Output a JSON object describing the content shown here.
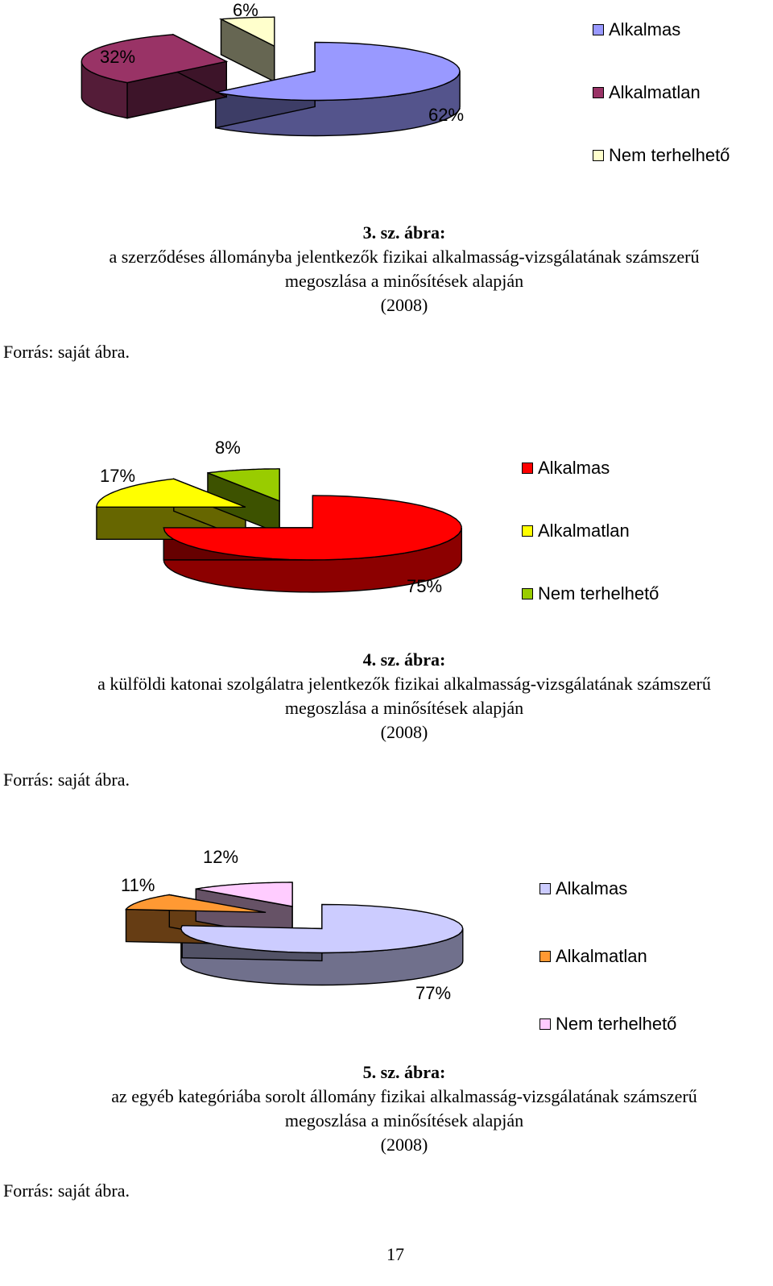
{
  "figures": [
    {
      "chart_data": {
        "type": "pie",
        "categories": [
          "Alkalmas",
          "Alkalmatlan",
          "Nem terhelhető"
        ],
        "values": [
          62,
          32,
          6
        ],
        "labels": [
          "62%",
          "32%",
          "6%"
        ],
        "colors": [
          "#9999ff",
          "#993366",
          "#ffffcc"
        ],
        "legend": "right"
      },
      "caption_number": "3.   sz. ábra:",
      "caption_lines": [
        "a szerződéses állományba jelentkezők fizikai alkalmasság-vizsgálatának számszerű",
        "megoszlása a minősítések alapján",
        "(2008)"
      ],
      "source": "Forrás: saját ábra."
    },
    {
      "chart_data": {
        "type": "pie",
        "categories": [
          "Alkalmas",
          "Alkalmatlan",
          "Nem terhelhető"
        ],
        "values": [
          75,
          17,
          8
        ],
        "labels": [
          "75%",
          "17%",
          "8%"
        ],
        "colors": [
          "#ff0000",
          "#ffff00",
          "#99cc00"
        ],
        "legend": "right"
      },
      "caption_number": "4.   sz. ábra:",
      "caption_lines": [
        "a külföldi katonai szolgálatra jelentkezők fizikai alkalmasság-vizsgálatának számszerű",
        "megoszlása a minősítések alapján",
        "(2008)"
      ],
      "source": "Forrás: saját ábra."
    },
    {
      "chart_data": {
        "type": "pie",
        "categories": [
          "Alkalmas",
          "Alkalmatlan",
          "Nem terhelhető"
        ],
        "values": [
          77,
          11,
          12
        ],
        "labels": [
          "77%",
          "11%",
          "12%"
        ],
        "colors": [
          "#ccccff",
          "#ff9933",
          "#ffccff"
        ],
        "legend": "right"
      },
      "caption_number": "5.   sz. ábra:",
      "caption_lines": [
        "az egyéb kategóriába sorolt állomány fizikai alkalmasság-vizsgálatának számszerű",
        "megoszlása a minősítések alapján",
        "(2008)"
      ],
      "source": "Forrás: saját ábra."
    }
  ],
  "page_number": "17"
}
